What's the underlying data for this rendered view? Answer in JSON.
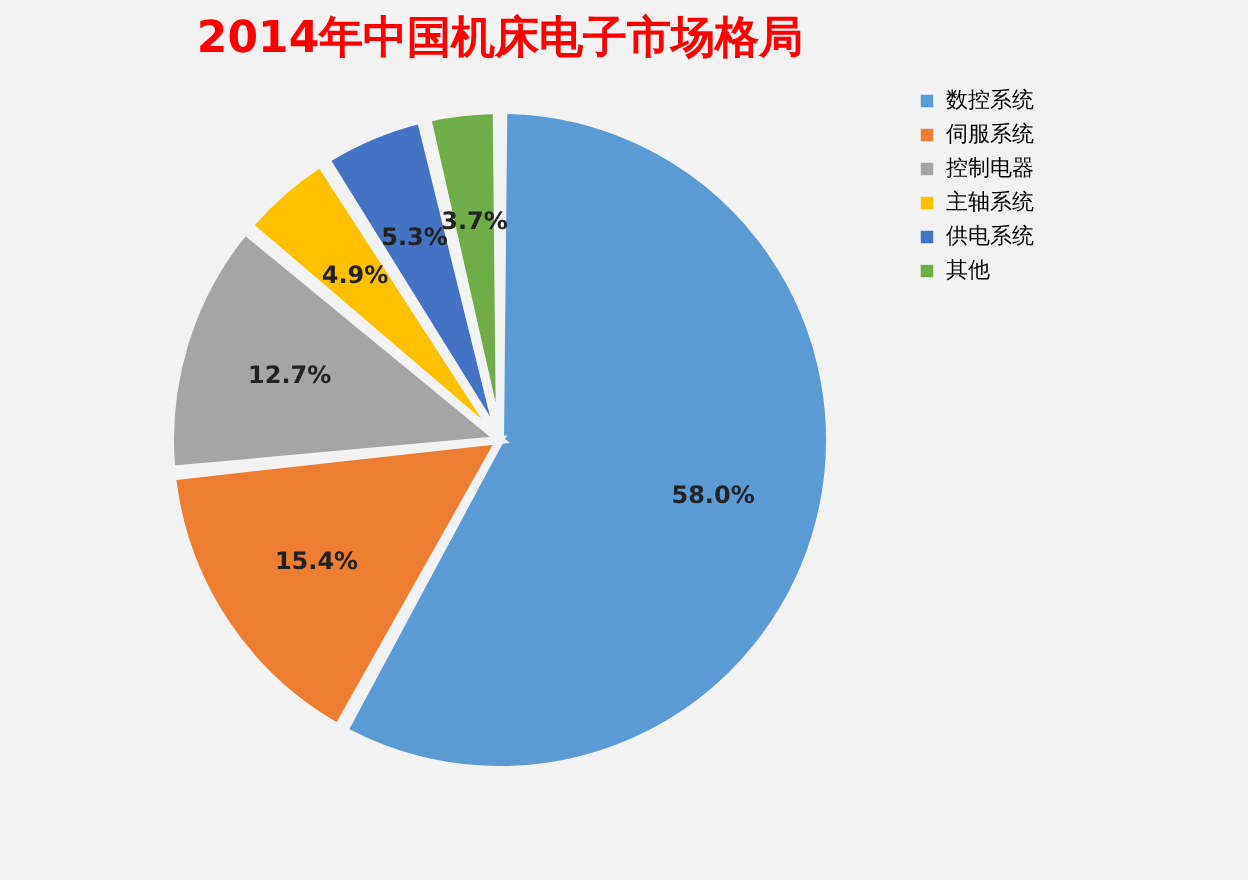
{
  "chart_data": {
    "type": "pie",
    "title": "2014年中国机床电子市场格局",
    "categories": [
      "数控系统",
      "伺服系统",
      "控制电器",
      "主轴系统",
      "供电系统",
      "其他"
    ],
    "values": [
      58.0,
      15.4,
      12.7,
      4.9,
      5.3,
      3.7
    ],
    "colors": [
      "#5b9bd5",
      "#ed7d31",
      "#a5a5a5",
      "#ffc000",
      "#4472c4",
      "#70ad47"
    ],
    "value_labels": [
      "58.0%",
      "15.4%",
      "12.7%",
      "4.9%",
      "5.3%",
      "3.7%"
    ],
    "legend": "right"
  }
}
